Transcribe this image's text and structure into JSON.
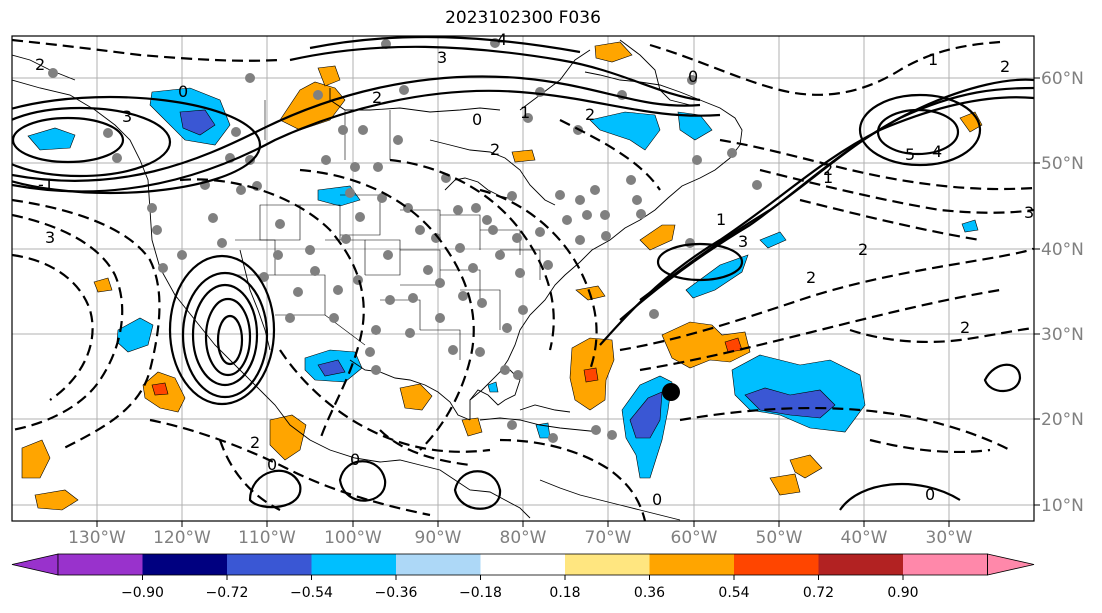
{
  "title": "2023102300 F036",
  "map": {
    "lat_labels": [
      "60°N",
      "50°N",
      "40°N",
      "30°N",
      "20°N",
      "10°N"
    ],
    "lon_labels": [
      "130°W",
      "120°W",
      "110°W",
      "100°W",
      "90°W",
      "80°W",
      "70°W",
      "60°W",
      "50°W",
      "40°W",
      "30°W"
    ],
    "contour_labels": [
      "2",
      "4",
      "3",
      "3",
      "0",
      "2",
      "0",
      "2",
      "1",
      "0",
      "1",
      "-1",
      "2",
      "3",
      "5",
      "4",
      "2",
      "3",
      "2",
      "2",
      "2",
      "1",
      "1",
      "0",
      "0",
      "0",
      "0",
      "2",
      "2",
      "3"
    ],
    "colors": {
      "contour": "#000000",
      "grid": "#b0b0b0",
      "neg_strong": "#3a57d4",
      "neg_mid": "#00bfff",
      "neg_darkest": "#00008b",
      "pos_mid": "#ffa500",
      "pos_strong": "#ff4500",
      "station_dot": "#808080",
      "marker": "#000000"
    }
  },
  "colorbar": {
    "tick_labels": [
      "−0.90",
      "−0.72",
      "−0.54",
      "−0.36",
      "−0.18",
      "0.18",
      "0.36",
      "0.54",
      "0.72",
      "0.90"
    ],
    "colors": [
      "#9932cc",
      "#000080",
      "#3a57d4",
      "#00bfff",
      "#add8f7",
      "#ffffff",
      "#ffe680",
      "#ffa500",
      "#ff4500",
      "#b22222",
      "#ff88aa",
      "#ff88aa"
    ]
  }
}
